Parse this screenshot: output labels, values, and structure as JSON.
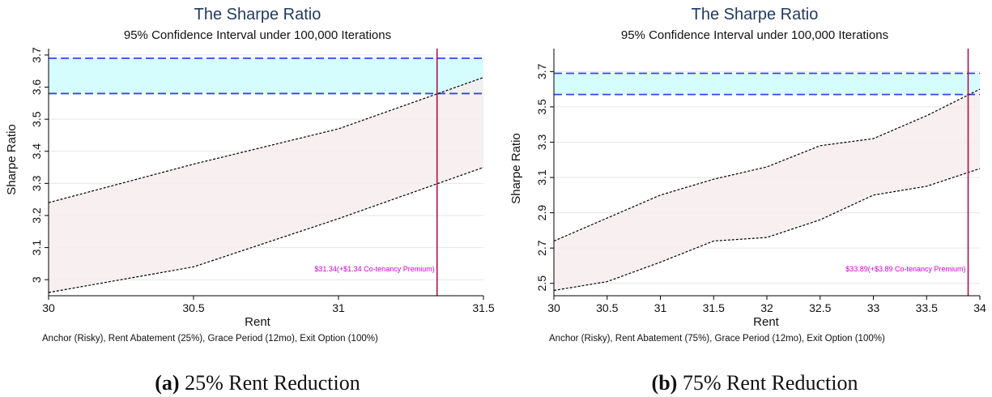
{
  "chart_data": [
    {
      "type": "area",
      "title": "The Sharpe Ratio",
      "subtitle": "95% Confidence Interval under 100,000 Iterations",
      "xlabel": "Rent",
      "ylabel": "Sharpe Ratio",
      "note": "Anchor (Risky), Rent Abatement (25%), Grace Period (12mo), Exit Option (100%)",
      "xlim": [
        30,
        31.5
      ],
      "ylim": [
        2.95,
        3.72
      ],
      "xticks": [
        30,
        30.5,
        31,
        31.5
      ],
      "xtick_labels": [
        "30",
        "30.5",
        "31",
        "31.5"
      ],
      "yticks": [
        3,
        3.1,
        3.2,
        3.3,
        3.4,
        3.5,
        3.6,
        3.7
      ],
      "ytick_labels": [
        "3",
        "3.1",
        "3.2",
        "3.3",
        "3.4",
        "3.5",
        "3.6",
        "3.7"
      ],
      "grid": true,
      "x": [
        30,
        30.5,
        31,
        31.5
      ],
      "upper": [
        3.24,
        3.36,
        3.47,
        3.63
      ],
      "lower": [
        2.96,
        3.04,
        3.19,
        3.35
      ],
      "ci_band": [
        3.58,
        3.69
      ],
      "vline_x": 31.34,
      "annotation": "$31.34(+$1.34 Co-tenancy Premium)",
      "colors": {
        "band_fill": "#d6fdfd",
        "band_line": "#3344ee",
        "area_fill": "#f6eced",
        "area_line": "#000000",
        "vline": "#b0104a",
        "annotation": "#d100d1"
      }
    },
    {
      "type": "area",
      "title": "The Sharpe Ratio",
      "subtitle": "95% Confidence Interval under 100,000 Iterations",
      "xlabel": "Rent",
      "ylabel": "Sharpe Ratio",
      "note": "Anchor (Risky), Rent Abatement (75%), Grace Period (12mo), Exit Option (100%)",
      "xlim": [
        30,
        34
      ],
      "ylim": [
        2.43,
        3.83
      ],
      "xticks": [
        30,
        30.5,
        31,
        31.5,
        32,
        32.5,
        33,
        33.5,
        34
      ],
      "xtick_labels": [
        "30",
        "30.5",
        "31",
        "31.5",
        "32",
        "32.5",
        "33",
        "33.5",
        "34"
      ],
      "yticks": [
        2.5,
        2.7,
        2.9,
        3.1,
        3.3,
        3.5,
        3.7
      ],
      "ytick_labels": [
        "2.5",
        "2.7",
        "2.9",
        "3.1",
        "3.3",
        "3.5",
        "3.7"
      ],
      "grid": true,
      "x": [
        30,
        30.5,
        31,
        31.5,
        32,
        32.5,
        33,
        33.5,
        34
      ],
      "upper": [
        2.74,
        2.87,
        3.0,
        3.09,
        3.16,
        3.28,
        3.32,
        3.45,
        3.6
      ],
      "lower": [
        2.46,
        2.51,
        2.62,
        2.74,
        2.76,
        2.86,
        3.0,
        3.05,
        3.15
      ],
      "ci_band": [
        3.57,
        3.69
      ],
      "vline_x": 33.89,
      "annotation": "$33.89(+$3.89 Co-tenancy Premium)",
      "colors": {
        "band_fill": "#d6fdfd",
        "band_line": "#3344ee",
        "area_fill": "#f6eced",
        "area_line": "#000000",
        "vline": "#b0104a",
        "annotation": "#d100d1"
      }
    }
  ],
  "captions": [
    {
      "letter": "(a)",
      "text": " 25% Rent Reduction"
    },
    {
      "letter": "(b)",
      "text": " 75% Rent Reduction"
    }
  ]
}
